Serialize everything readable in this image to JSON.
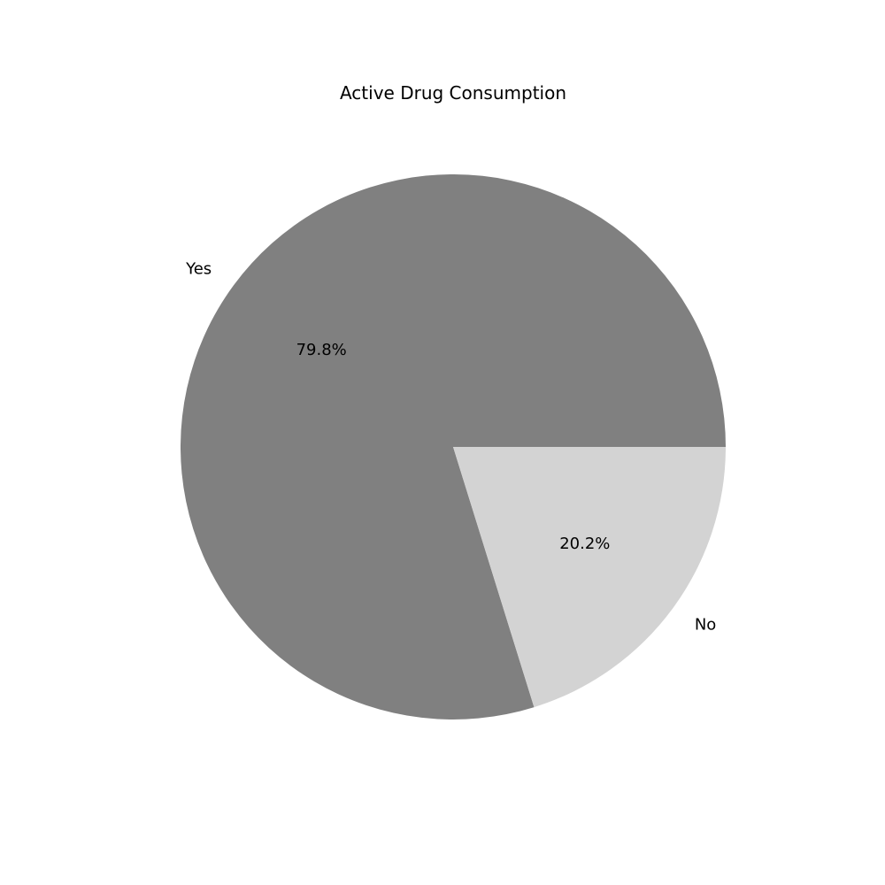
{
  "chart_data": {
    "type": "pie",
    "title": "Active Drug Consumption",
    "labels": [
      "Yes",
      "No"
    ],
    "values": [
      79.8,
      20.2
    ],
    "percent_labels": [
      "79.8%",
      "20.2%"
    ],
    "colors": [
      "#808080",
      "#d3d3d3"
    ],
    "start_angle_deg": 0,
    "direction": "counterclockwise",
    "legend": "none"
  }
}
